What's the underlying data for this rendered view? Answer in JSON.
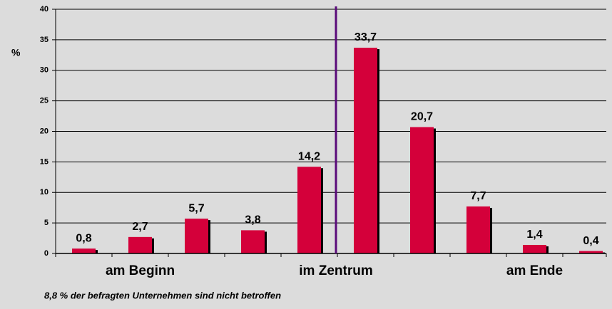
{
  "chart_data": {
    "type": "bar",
    "y_label": "%",
    "categories": [
      null,
      null,
      null,
      null,
      null,
      null,
      null,
      null,
      null,
      null
    ],
    "values": [
      0.8,
      2.7,
      5.7,
      3.8,
      14.2,
      33.7,
      20.7,
      7.7,
      1.4,
      0.4
    ],
    "value_labels": [
      "0,8",
      "2,7",
      "5,7",
      "3,8",
      "14,2",
      "33,7",
      "20,7",
      "7,7",
      "1,4",
      "0,4"
    ],
    "group_labels": [
      "am Beginn",
      "im Zentrum",
      "am Ende"
    ],
    "footnote": "8,8 % der befragten Unternehmen sind nicht betroffen",
    "color": "#d4003a",
    "ylim": [
      0,
      40
    ],
    "yticks": [
      0,
      5,
      10,
      15,
      20,
      25,
      30,
      35,
      40
    ],
    "grid": true
  }
}
